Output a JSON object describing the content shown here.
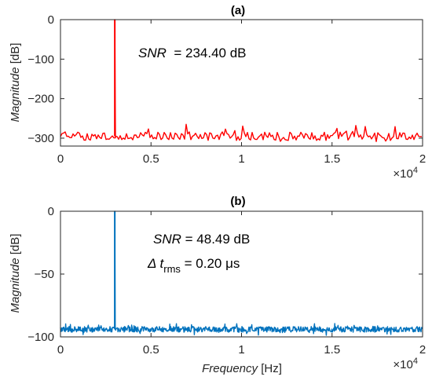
{
  "chart_data": [
    {
      "type": "line",
      "title": "(a)",
      "ylabel_italic": "Magnitude",
      "ylabel_unit": "[dB]",
      "xlabel_italic": "",
      "xlabel_unit": "",
      "xlim": [
        0,
        20000
      ],
      "ylim": [
        -320,
        0
      ],
      "xticks": [
        0,
        5000,
        10000,
        15000,
        20000
      ],
      "xtick_labels": [
        "0",
        "0.5",
        "1",
        "1.5",
        "2"
      ],
      "yticks": [
        0,
        -100,
        -200,
        -300
      ],
      "ytick_labels": [
        "0",
        "−100",
        "−200",
        "−300"
      ],
      "x_exponent_base": "×10",
      "x_exponent_power": "4",
      "grid": false,
      "color": "#ff0000",
      "peak": {
        "x": 3000,
        "y": 0
      },
      "noise_floor": {
        "mean": -295,
        "min": -310,
        "max": -262
      },
      "annotations": [
        {
          "italic": "SNR",
          "rest": "  = 234.40 dB"
        }
      ]
    },
    {
      "type": "line",
      "title": "(b)",
      "ylabel_italic": "Magnitude",
      "ylabel_unit": "[dB]",
      "xlabel_italic": "Frequency",
      "xlabel_unit": "[Hz]",
      "xlim": [
        0,
        20000
      ],
      "ylim": [
        -100,
        0
      ],
      "xticks": [
        0,
        5000,
        10000,
        15000,
        20000
      ],
      "xtick_labels": [
        "0",
        "0.5",
        "1",
        "1.5",
        "2"
      ],
      "yticks": [
        0,
        -50,
        -100
      ],
      "ytick_labels": [
        "0",
        "−50",
        "−100"
      ],
      "x_exponent_base": "×10",
      "x_exponent_power": "4",
      "grid": false,
      "color": "#0072bd",
      "peak": {
        "x": 3000,
        "y": 0
      },
      "noise_floor": {
        "mean": -94,
        "min": -99,
        "max": -89
      },
      "annotations": [
        {
          "italic": "SNR",
          "rest": " = 48.49 dB"
        },
        {
          "italic": "Δ t",
          "sub": "rms",
          "rest": " = 0.20 μs"
        }
      ]
    }
  ]
}
